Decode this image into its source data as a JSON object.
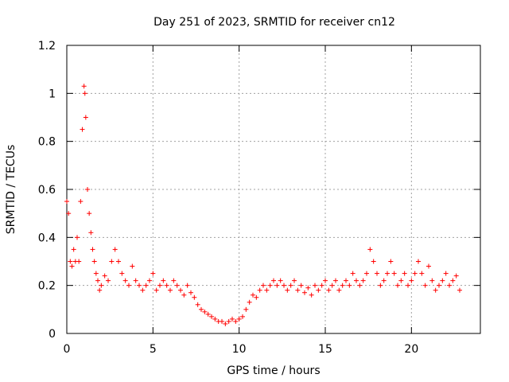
{
  "chart_data": {
    "type": "scatter",
    "title": "Day 251 of 2023, SRMTID for receiver cn12",
    "xlabel": "GPS time / hours",
    "ylabel": "SRMTID / TECUs",
    "xlim": [
      0,
      24
    ],
    "ylim": [
      0,
      1.2
    ],
    "xticks": [
      0,
      5,
      10,
      15,
      20
    ],
    "xtick_labels": [
      "0",
      "5",
      "10",
      "15",
      "20"
    ],
    "yticks": [
      0,
      0.2,
      0.4,
      0.6,
      0.8,
      1.0,
      1.2
    ],
    "ytick_labels": [
      "0",
      "0.2",
      "0.4",
      "0.6",
      "0.8",
      "1",
      "1.2"
    ],
    "grid": true,
    "marker": "plus",
    "series": [
      {
        "name": "cn12",
        "color": "#ff0000",
        "x": [
          0.0,
          0.1,
          0.2,
          0.3,
          0.4,
          0.5,
          0.6,
          0.7,
          0.8,
          0.9,
          1.0,
          1.05,
          1.1,
          1.2,
          1.3,
          1.4,
          1.5,
          1.6,
          1.7,
          1.8,
          1.9,
          2.0,
          2.2,
          2.4,
          2.6,
          2.8,
          3.0,
          3.2,
          3.4,
          3.6,
          3.8,
          4.0,
          4.2,
          4.4,
          4.6,
          4.8,
          5.0,
          5.2,
          5.4,
          5.6,
          5.8,
          6.0,
          6.2,
          6.4,
          6.6,
          6.8,
          7.0,
          7.2,
          7.4,
          7.6,
          7.8,
          8.0,
          8.2,
          8.4,
          8.6,
          8.8,
          9.0,
          9.2,
          9.4,
          9.6,
          9.8,
          10.0,
          10.2,
          10.4,
          10.6,
          10.8,
          11.0,
          11.2,
          11.4,
          11.6,
          11.8,
          12.0,
          12.2,
          12.4,
          12.6,
          12.8,
          13.0,
          13.2,
          13.4,
          13.6,
          13.8,
          14.0,
          14.2,
          14.4,
          14.6,
          14.8,
          15.0,
          15.2,
          15.4,
          15.6,
          15.8,
          16.0,
          16.2,
          16.4,
          16.6,
          16.8,
          17.0,
          17.2,
          17.4,
          17.6,
          17.8,
          18.0,
          18.2,
          18.4,
          18.6,
          18.8,
          19.0,
          19.2,
          19.4,
          19.6,
          19.8,
          20.0,
          20.2,
          20.4,
          20.6,
          20.8,
          21.0,
          21.2,
          21.4,
          21.6,
          21.8,
          22.0,
          22.2,
          22.4,
          22.6,
          22.8
        ],
        "y": [
          0.55,
          0.5,
          0.3,
          0.28,
          0.35,
          0.3,
          0.4,
          0.3,
          0.55,
          0.85,
          1.03,
          1.0,
          0.9,
          0.6,
          0.5,
          0.42,
          0.35,
          0.3,
          0.25,
          0.22,
          0.18,
          0.2,
          0.24,
          0.22,
          0.3,
          0.35,
          0.3,
          0.25,
          0.22,
          0.2,
          0.28,
          0.22,
          0.2,
          0.18,
          0.2,
          0.22,
          0.25,
          0.18,
          0.2,
          0.22,
          0.2,
          0.18,
          0.22,
          0.2,
          0.18,
          0.16,
          0.2,
          0.17,
          0.15,
          0.12,
          0.1,
          0.09,
          0.08,
          0.07,
          0.06,
          0.05,
          0.05,
          0.04,
          0.05,
          0.06,
          0.05,
          0.06,
          0.07,
          0.1,
          0.13,
          0.16,
          0.15,
          0.18,
          0.2,
          0.18,
          0.2,
          0.22,
          0.2,
          0.22,
          0.2,
          0.18,
          0.2,
          0.22,
          0.18,
          0.2,
          0.17,
          0.19,
          0.16,
          0.2,
          0.18,
          0.2,
          0.22,
          0.18,
          0.2,
          0.22,
          0.18,
          0.2,
          0.22,
          0.2,
          0.25,
          0.22,
          0.2,
          0.22,
          0.25,
          0.35,
          0.3,
          0.25,
          0.2,
          0.22,
          0.25,
          0.3,
          0.25,
          0.2,
          0.22,
          0.25,
          0.2,
          0.22,
          0.25,
          0.3,
          0.25,
          0.2,
          0.28,
          0.22,
          0.18,
          0.2,
          0.22,
          0.25,
          0.2,
          0.22,
          0.24,
          0.18
        ]
      }
    ]
  }
}
